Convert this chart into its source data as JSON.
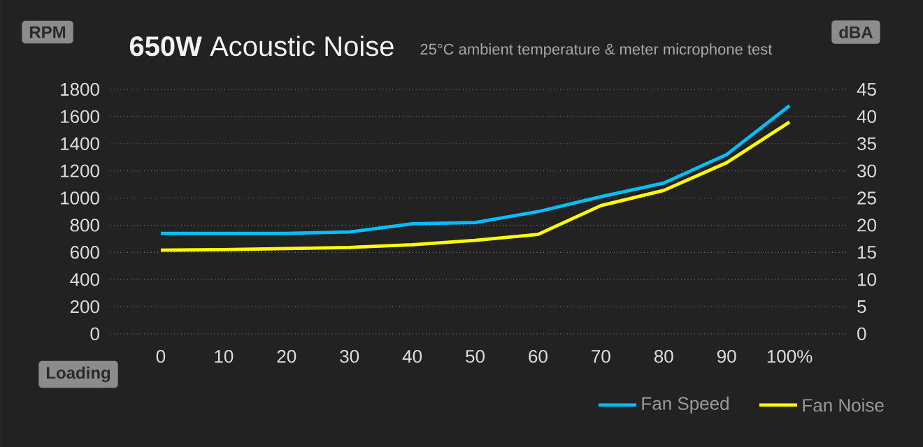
{
  "chart_data": {
    "type": "line",
    "title": "**650W** Acoustic Noise",
    "subtitle": "25°C ambient temperature & meter microphone test",
    "xlabel": "Loading",
    "ylabel": "RPM",
    "y2label": "dBA",
    "x": [
      0,
      10,
      20,
      30,
      40,
      50,
      60,
      70,
      80,
      90,
      100
    ],
    "series": [
      {
        "name": "Fan Speed",
        "color": "#00bfff",
        "values": [
          740,
          740,
          740,
          750,
          810,
          820,
          900,
          1010,
          1110,
          1320,
          1680
        ]
      },
      {
        "name": "Fan Noise",
        "color": "#ffff00",
        "axis": "y2",
        "values": [
          15.4,
          15.5,
          15.7,
          15.9,
          16.4,
          17.2,
          18.3,
          23.6,
          26.4,
          31.5,
          39
        ]
      }
    ],
    "xlim": [
      -8,
      109
    ],
    "xticks": [
      0,
      10,
      20,
      30,
      40,
      50,
      60,
      70,
      80,
      90,
      {
        "value": 100,
        "label": "100%"
      }
    ],
    "ylim": [
      0,
      1800
    ],
    "yticks": [
      0,
      200,
      400,
      600,
      800,
      1000,
      1200,
      1400,
      1600,
      1800
    ],
    "y2lim": [
      0,
      45
    ],
    "y2ticks": [
      0,
      5,
      10,
      15,
      20,
      25,
      30,
      35,
      40,
      45
    ],
    "grid": "y",
    "legend": "bottom right",
    "line_style": "solid"
  }
}
